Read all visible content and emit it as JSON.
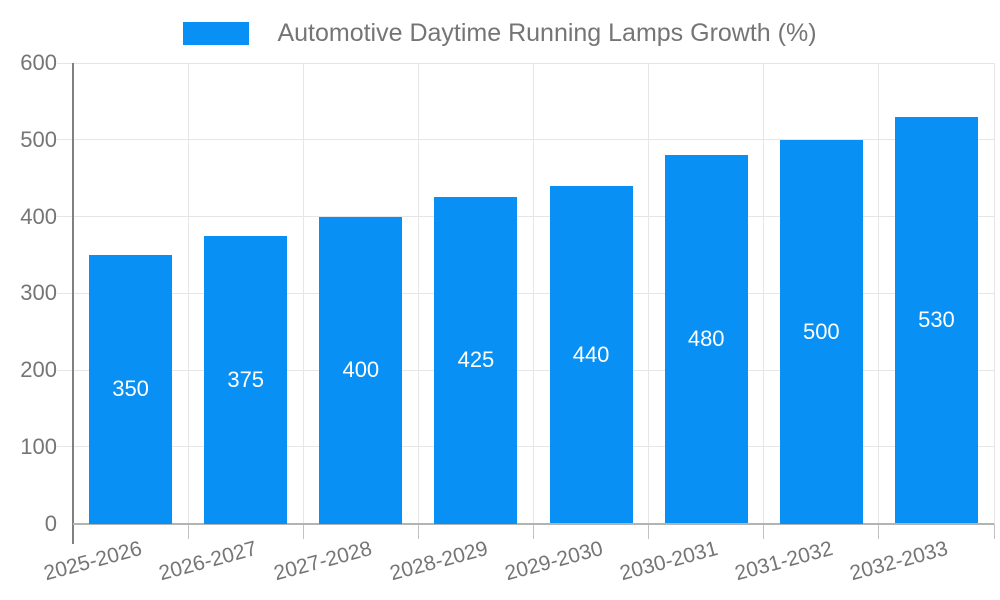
{
  "chart_data": {
    "type": "bar",
    "title": "Automotive Daytime Running Lamps Growth (%)",
    "categories": [
      "2025-2026",
      "2026-2027",
      "2027-2028",
      "2028-2029",
      "2029-2030",
      "2030-2031",
      "2031-2032",
      "2032-2033"
    ],
    "values": [
      350,
      375,
      400,
      425,
      440,
      480,
      500,
      530
    ],
    "value_labels": [
      "350",
      "375",
      "400",
      "425",
      "440",
      "480",
      "500",
      "530"
    ],
    "ylabel": "",
    "xlabel": "",
    "ylim": [
      0,
      600
    ],
    "ytick_step": 100,
    "ytick_labels": [
      "0",
      "100",
      "200",
      "300",
      "400",
      "500",
      "600"
    ],
    "grid": true,
    "legend_position": "top-center",
    "colors": {
      "bar": "#0890f5",
      "label": "#757575",
      "grid": "#e6e6e6",
      "axis_y": "#808080",
      "axis_x": "#b3b3b3",
      "tick": "#c2c2c2",
      "value_label": "#ffffff"
    }
  }
}
